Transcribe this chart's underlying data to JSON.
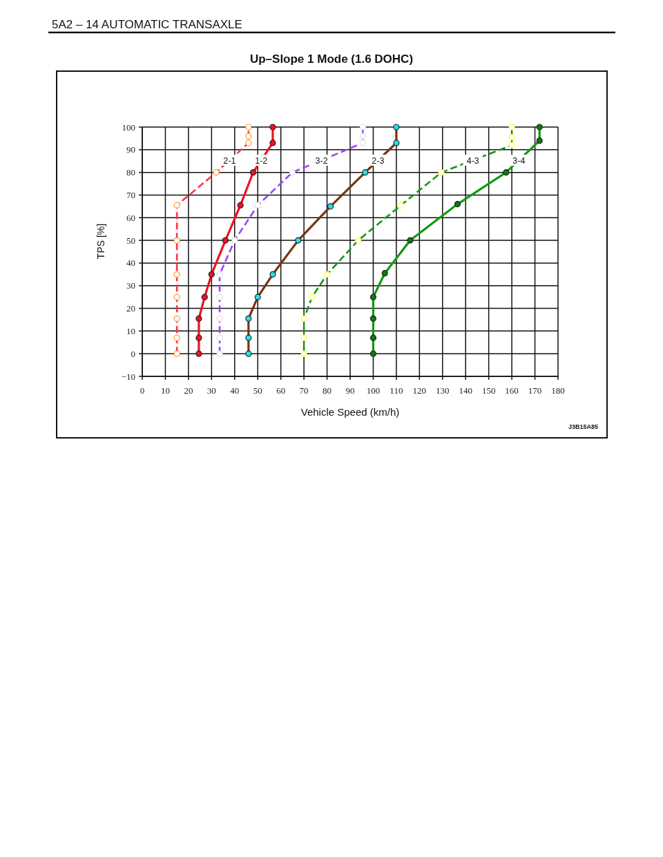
{
  "chart_data": {
    "type": "line",
    "title": "Up–Slope 1 Mode (1.6 DOHC)",
    "xlabel": "Vehicle Speed (km/h)",
    "ylabel": "TPS [%]",
    "annotations": [
      "5A2 – 14 AUTOMATIC TRANSAXLE",
      "J3B15A85"
    ],
    "xlim": [
      0,
      180
    ],
    "xticks": [
      0,
      10,
      20,
      30,
      40,
      50,
      60,
      70,
      80,
      90,
      100,
      110,
      120,
      130,
      140,
      150,
      160,
      170,
      180
    ],
    "ylim": [
      -10,
      100
    ],
    "yticks": [
      -10,
      0,
      10,
      20,
      30,
      40,
      50,
      60,
      70,
      80,
      90,
      100
    ],
    "grid": true,
    "marker": "circle",
    "series": [
      {
        "name": "2-1",
        "color": "#ff3344",
        "line_style": "dashed",
        "x": [
          15,
          15,
          15,
          15,
          15,
          15,
          15,
          32,
          46,
          46,
          46
        ],
        "values": [
          0,
          7,
          15.5,
          25,
          35,
          50,
          65.5,
          80,
          93,
          96,
          100
        ],
        "colors": [
          "#ff9933",
          "#ff9933",
          "#ff9933",
          "#ff9933",
          "#ff9933",
          "#ff9933",
          "#ff9933",
          "#ff9933",
          "#ff9933",
          "#ff9933",
          "#ff9933"
        ]
      },
      {
        "name": "1-2",
        "color": "#ee1122",
        "line_style": "solid",
        "x": [
          24.5,
          24.5,
          24.5,
          27,
          30,
          36,
          42.5,
          48,
          56.5,
          56.5
        ],
        "values": [
          0,
          7,
          15.5,
          25,
          35,
          50,
          65.5,
          80,
          93,
          100
        ],
        "colors": [
          "#ee1122",
          "#ee1122",
          "#ee1122",
          "#ee1122",
          "#ee1122",
          "#ee1122",
          "#ee1122",
          "#ee1122",
          "#ee1122",
          "#ee1122"
        ]
      },
      {
        "name": "3-2",
        "color": "#9944ff",
        "line_style": "dashed",
        "x": [
          33.5,
          33.5,
          33.5,
          33.5,
          33.5,
          40,
          50,
          65,
          95.5,
          95.5,
          95.5
        ],
        "values": [
          0,
          7,
          15.5,
          25,
          35,
          50,
          65.5,
          80,
          93,
          96,
          100
        ],
        "colors": [
          "#dcdce6",
          "#dcdce6",
          "#dcdce6",
          "#dcdce6",
          "#dcdce6",
          "#dcdce6",
          "#dcdce6",
          "#dcdce6",
          "#dcdce6",
          "#dcdce6",
          "#dcdce6"
        ]
      },
      {
        "name": "2-3",
        "color": "#7a3311",
        "line_style": "solid",
        "x": [
          46,
          46,
          46,
          50,
          56.5,
          67.5,
          81.5,
          96.5,
          110,
          110
        ],
        "values": [
          0,
          7,
          15.5,
          25,
          35,
          50,
          65,
          80,
          93,
          100
        ],
        "colors": [
          "#22e0e8",
          "#22e0e8",
          "#22e0e8",
          "#22e0e8",
          "#22e0e8",
          "#22e0e8",
          "#22e0e8",
          "#22e0e8",
          "#22e0e8",
          "#22e0e8"
        ]
      },
      {
        "name": "4-3",
        "color": "#119911",
        "line_style": "dashed",
        "x": [
          70,
          70,
          70,
          73.5,
          80,
          93.5,
          112,
          129.5,
          160,
          160,
          160
        ],
        "values": [
          0,
          7,
          15.5,
          25,
          35,
          50,
          65.5,
          80,
          92,
          95.5,
          100
        ],
        "colors": [
          "#ffff22",
          "#ffff22",
          "#ffff22",
          "#ffff22",
          "#ffff22",
          "#ffff22",
          "#ffff22",
          "#ffff22",
          "#ffff22",
          "#ffff22",
          "#ffff22"
        ]
      },
      {
        "name": "3-4",
        "color": "#119911",
        "line_style": "solid",
        "x": [
          100,
          100,
          100,
          100,
          105,
          116,
          136.5,
          157.5,
          172,
          172
        ],
        "values": [
          0,
          7,
          15.5,
          25,
          35.5,
          50,
          66,
          80,
          94,
          100
        ],
        "colors": [
          "#117711",
          "#117711",
          "#117711",
          "#117711",
          "#117711",
          "#117711",
          "#117711",
          "#117711",
          "#117711",
          "#117711"
        ]
      }
    ]
  }
}
